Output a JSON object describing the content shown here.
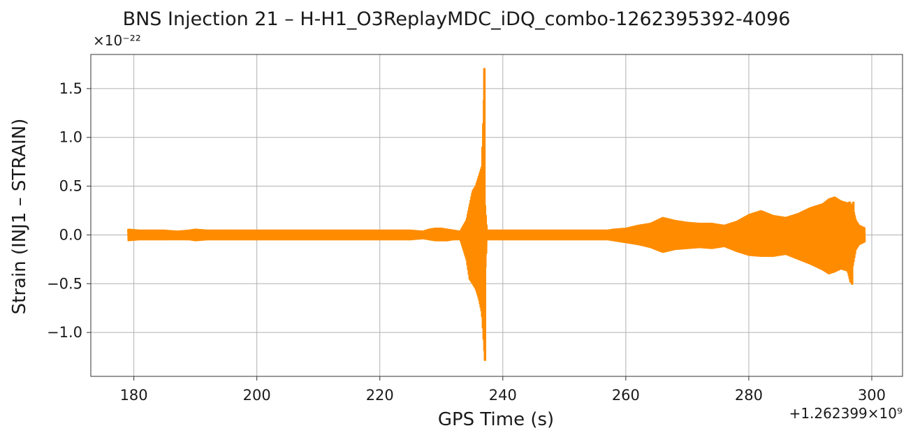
{
  "chart_data": {
    "type": "line",
    "title": "BNS Injection 21 – H-H1_O3ReplayMDC_iDQ_combo-1262395392-4096",
    "xlabel": "GPS Time (s)",
    "ylabel": "Strain (INJ1 – STRAIN)",
    "x_offset_label": "+1.262399×10⁹",
    "y_scale_label": "×10⁻²²",
    "xlim": [
      173,
      305
    ],
    "ylim": [
      -1.45,
      1.85
    ],
    "xticks": [
      180,
      200,
      220,
      240,
      260,
      280,
      300
    ],
    "yticks": [
      -1.0,
      -0.5,
      0.0,
      0.5,
      1.0,
      1.5
    ],
    "xtick_labels": [
      "180",
      "200",
      "220",
      "240",
      "260",
      "280",
      "300"
    ],
    "ytick_labels": [
      "−1.0",
      "−0.5",
      "0.0",
      "0.5",
      "1.0",
      "1.5"
    ],
    "grid": true,
    "line_color": "#ff8c00",
    "series": [
      {
        "envelope_x": [
          179,
          181,
          183,
          185,
          187,
          189,
          190,
          192,
          195,
          198,
          201,
          204,
          207,
          210,
          213,
          216,
          219,
          222,
          225,
          227,
          228,
          229,
          230,
          231,
          232,
          233,
          234,
          234.5,
          235,
          235.5,
          236,
          236.5,
          237,
          237.2,
          237.5,
          238,
          240,
          243,
          246,
          249,
          252,
          255,
          257,
          258,
          260,
          262,
          264,
          266,
          268,
          270,
          272,
          274,
          276,
          278,
          280,
          282,
          284,
          286,
          288,
          290,
          292,
          293,
          294,
          295,
          296,
          296.5,
          297,
          297.5,
          298,
          299
        ],
        "upper": [
          0.06,
          0.05,
          0.05,
          0.05,
          0.04,
          0.05,
          0.06,
          0.05,
          0.05,
          0.05,
          0.05,
          0.05,
          0.05,
          0.05,
          0.05,
          0.05,
          0.05,
          0.05,
          0.05,
          0.04,
          0.06,
          0.07,
          0.07,
          0.06,
          0.05,
          0.04,
          0.15,
          0.3,
          0.45,
          0.5,
          0.6,
          0.7,
          1.7,
          0.3,
          0.05,
          0.05,
          0.05,
          0.05,
          0.05,
          0.05,
          0.05,
          0.05,
          0.05,
          0.06,
          0.07,
          0.1,
          0.12,
          0.18,
          0.15,
          0.13,
          0.12,
          0.12,
          0.1,
          0.14,
          0.21,
          0.25,
          0.2,
          0.18,
          0.22,
          0.28,
          0.32,
          0.37,
          0.39,
          0.35,
          0.33,
          0.34,
          0.28,
          0.15,
          0.1,
          0.07
        ],
        "lower": [
          -0.06,
          -0.05,
          -0.05,
          -0.05,
          -0.05,
          -0.05,
          -0.06,
          -0.05,
          -0.05,
          -0.05,
          -0.05,
          -0.05,
          -0.05,
          -0.05,
          -0.05,
          -0.05,
          -0.05,
          -0.05,
          -0.05,
          -0.04,
          -0.05,
          -0.06,
          -0.06,
          -0.06,
          -0.05,
          -0.05,
          -0.25,
          -0.45,
          -0.5,
          -0.55,
          -0.65,
          -0.8,
          -1.28,
          -0.4,
          -0.05,
          -0.05,
          -0.05,
          -0.05,
          -0.05,
          -0.05,
          -0.05,
          -0.05,
          -0.05,
          -0.06,
          -0.08,
          -0.1,
          -0.13,
          -0.18,
          -0.15,
          -0.14,
          -0.13,
          -0.14,
          -0.12,
          -0.17,
          -0.21,
          -0.22,
          -0.22,
          -0.2,
          -0.25,
          -0.3,
          -0.36,
          -0.4,
          -0.38,
          -0.35,
          -0.37,
          -0.5,
          -0.32,
          -0.15,
          -0.1,
          -0.07
        ],
        "spikes": [
          {
            "x": 237.0,
            "y": 1.7
          },
          {
            "x": 237.1,
            "y": -1.28
          },
          {
            "x": 296.8,
            "y": -0.5
          },
          {
            "x": 297.0,
            "y": 0.33
          }
        ]
      }
    ]
  }
}
